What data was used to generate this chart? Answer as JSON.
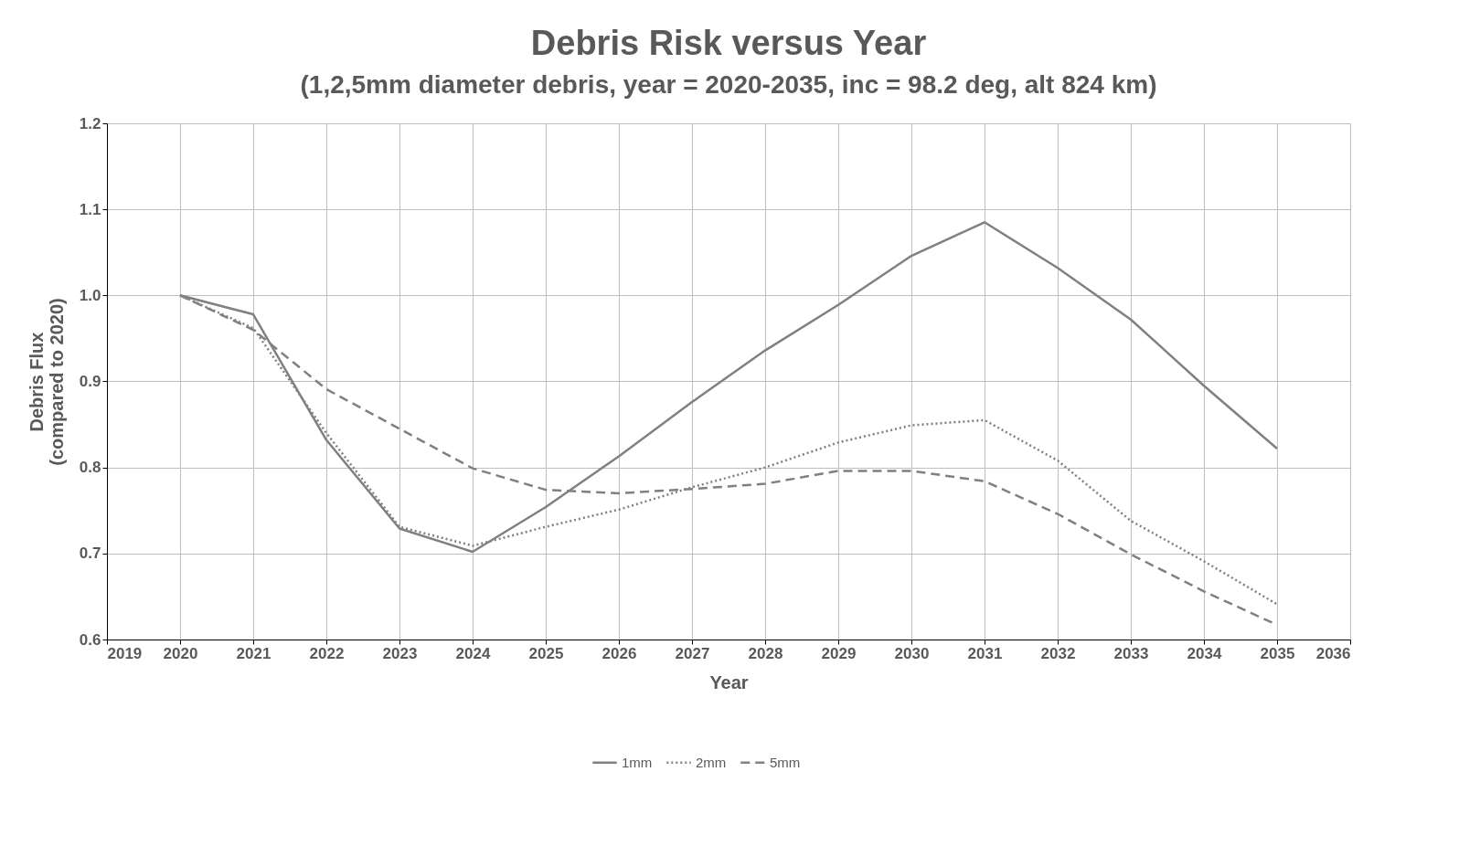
{
  "chart_data": {
    "type": "line",
    "title": "Debris Risk versus Year",
    "subtitle": "(1,2,5mm diameter debris, year = 2020-2035, inc = 98.2 deg, alt 824 km)",
    "xlabel": "Year",
    "ylabel": "Debris Flux (compared to 2020)",
    "x": [
      2020,
      2021,
      2022,
      2023,
      2024,
      2025,
      2026,
      2027,
      2028,
      2029,
      2030,
      2031,
      2032,
      2033,
      2034,
      2035
    ],
    "series": [
      {
        "name": "1mm",
        "color": "#808080",
        "line_style": "solid",
        "values": [
          1.0,
          0.978,
          0.832,
          0.729,
          0.702,
          0.754,
          0.813,
          0.876,
          0.936,
          0.989,
          1.046,
          1.085,
          1.032,
          0.972,
          0.895,
          0.822
        ]
      },
      {
        "name": "2mm",
        "color": "#808080",
        "line_style": "dotted",
        "values": [
          1.0,
          0.962,
          0.84,
          0.731,
          0.709,
          0.731,
          0.751,
          0.777,
          0.8,
          0.829,
          0.849,
          0.855,
          0.808,
          0.738,
          0.691,
          0.641
        ]
      },
      {
        "name": "5mm",
        "color": "#808080",
        "line_style": "dashed",
        "values": [
          1.0,
          0.96,
          0.891,
          0.845,
          0.799,
          0.774,
          0.77,
          0.775,
          0.781,
          0.796,
          0.796,
          0.784,
          0.746,
          0.699,
          0.656,
          0.617
        ]
      }
    ],
    "xlim": [
      2019,
      2036
    ],
    "xticks": [
      2019,
      2020,
      2021,
      2022,
      2023,
      2024,
      2025,
      2026,
      2027,
      2028,
      2029,
      2030,
      2031,
      2032,
      2033,
      2034,
      2035,
      2036
    ],
    "ylim": [
      0.6,
      1.2
    ],
    "yticks": [
      0.6,
      0.7,
      0.8,
      0.9,
      {
        "value": 1,
        "label": "1.0"
      },
      1.1,
      1.2
    ],
    "grid": true,
    "legend": "bottom",
    "marker": "none"
  }
}
